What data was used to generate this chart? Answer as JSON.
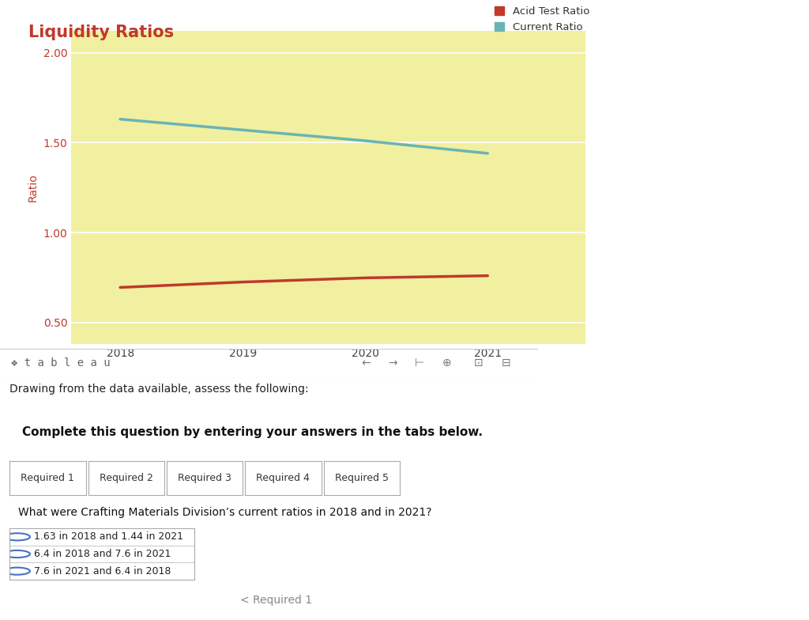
{
  "title": "Liquidity Ratios",
  "title_color": "#c0392b",
  "title_fontsize": 15,
  "title_fontweight": "bold",
  "years": [
    2018,
    2019,
    2020,
    2021
  ],
  "acid_test_ratio": [
    0.695,
    0.725,
    0.748,
    0.76
  ],
  "current_ratio": [
    1.63,
    1.57,
    1.51,
    1.44
  ],
  "acid_test_color": "#c0392b",
  "current_ratio_color": "#6ab4b4",
  "plot_bg_color": "#f0f0a0",
  "ylabel": "Ratio",
  "ylabel_color": "#c0392b",
  "ylabel_fontsize": 10,
  "yticks": [
    0.5,
    1.0,
    1.5,
    2.0
  ],
  "ylim": [
    0.38,
    2.12
  ],
  "xlim": [
    2017.6,
    2021.8
  ],
  "grid_color": "#ffffff",
  "line_width": 2.5,
  "legend_acid_label": "Acid Test Ratio",
  "legend_current_label": "Current Ratio",
  "outer_bg_color": "#ffffff",
  "tableau_bar_bg": "#f5f5f5",
  "tableau_text": "❖ t a b l e a u",
  "bottom_text": "Drawing from the data available, assess the following:",
  "complete_text": "Complete this question by entering your answers in the tabs below.",
  "question_text": "What were Crafting Materials Division’s current ratios in 2018 and in 2021?",
  "option1": "1.63 in 2018 and 1.44 in 2021",
  "option2": "6.4 in 2018 and 7.6 in 2021",
  "option3": "7.6 in 2021 and 6.4 in 2018",
  "tab_labels": [
    "Required 1",
    "Required 2",
    "Required 3",
    "Required 4",
    "Required 5"
  ],
  "complete_bg": "#e0e0e0",
  "question_bg": "#dce8f5",
  "btn1_bg": "#d8dde8",
  "btn1_text_color": "#888888",
  "btn2_bg": "#4a6ea8",
  "btn2_text_color": "#ffffff"
}
